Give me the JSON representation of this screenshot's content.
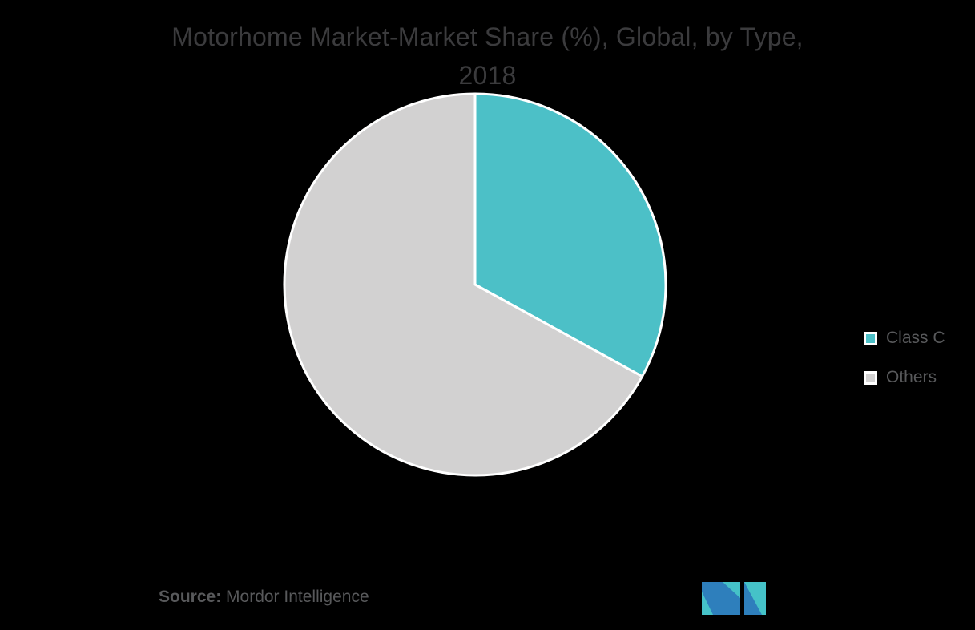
{
  "page": {
    "background": "#000000"
  },
  "chart_data": {
    "type": "pie",
    "title": "Motorhome Market-Market Share (%), Global, by Type, 2018",
    "title_lines": [
      "Motorhome Market-Market Share (%), Global, by Type,",
      "2018"
    ],
    "slices": [
      {
        "label": "Class C",
        "value": 33,
        "color": "#4CC0C7"
      },
      {
        "label": "Others",
        "value": 67,
        "color": "#D2D1D1"
      }
    ],
    "start_angle": 0,
    "slice_border_color": "#FFFFFF",
    "legend_position": "right",
    "legend_labels": [
      "Class C",
      "Others"
    ]
  },
  "source": {
    "label": "Source:",
    "text": "Mordor Intelligence"
  },
  "branding": {
    "logo_name": "mordor-intelligence-logo",
    "logo_teal": "#45C2C8",
    "logo_blue": "#2E7FBC"
  },
  "style": {
    "title_color": "#3B3B3D",
    "text_color": "#58595B",
    "background": "#000000"
  }
}
